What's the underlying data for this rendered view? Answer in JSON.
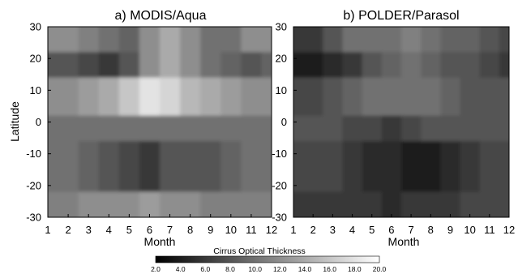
{
  "chart_data": [
    {
      "type": "heatmap",
      "title": "a)  MODIS/Aqua",
      "xlabel": "Month",
      "ylabel": "Latitude",
      "x_ticks": [
        "1",
        "2",
        "3",
        "4",
        "5",
        "6",
        "7",
        "8",
        "9",
        "10",
        "11",
        "12"
      ],
      "y_ticks": [
        "30",
        "20",
        "10",
        "0",
        "-10",
        "-20",
        "-30"
      ],
      "xlim": [
        1,
        12
      ],
      "ylim": [
        -30,
        30
      ],
      "colorscale": "grayscale",
      "approx_cirrus_optical_thickness_by_latitude_band": [
        {
          "lat_range": [
            22,
            30
          ],
          "values": [
            12,
            12,
            11,
            10,
            9,
            12,
            14,
            12,
            10,
            10,
            12,
            12
          ]
        },
        {
          "lat_range": [
            14,
            22
          ],
          "values": [
            8,
            8,
            7,
            6,
            8,
            12,
            14,
            12,
            10,
            9,
            8,
            9
          ]
        },
        {
          "lat_range": [
            2,
            14
          ],
          "values": [
            12,
            12,
            13,
            14,
            16,
            18,
            17,
            15,
            14,
            13,
            12,
            12
          ]
        },
        {
          "lat_range": [
            -6,
            2
          ],
          "values": [
            10,
            10,
            10,
            10,
            10,
            10,
            10,
            10,
            10,
            10,
            10,
            10
          ]
        },
        {
          "lat_range": [
            -22,
            -6
          ],
          "values": [
            10,
            10,
            9,
            8,
            7,
            6,
            8,
            8,
            8,
            9,
            10,
            10
          ]
        },
        {
          "lat_range": [
            -30,
            -22
          ],
          "values": [
            11,
            11,
            12,
            12,
            12,
            13,
            12,
            12,
            11,
            11,
            11,
            11
          ]
        }
      ]
    },
    {
      "type": "heatmap",
      "title": "b)  POLDER/Parasol",
      "xlabel": "Month",
      "x_ticks": [
        "1",
        "2",
        "3",
        "4",
        "5",
        "6",
        "7",
        "8",
        "9",
        "10",
        "11",
        "12"
      ],
      "y_ticks": [
        "30",
        "20",
        "10",
        "0",
        "-10",
        "-20",
        "-30"
      ],
      "xlim": [
        1,
        12
      ],
      "ylim": [
        -30,
        30
      ],
      "colorscale": "grayscale",
      "approx_cirrus_optical_thickness_by_latitude_band": [
        {
          "lat_range": [
            22,
            30
          ],
          "values": [
            6,
            6,
            8,
            10,
            10,
            10,
            11,
            10,
            9,
            9,
            8,
            7
          ]
        },
        {
          "lat_range": [
            14,
            22
          ],
          "values": [
            4,
            4,
            5,
            6,
            8,
            9,
            10,
            9,
            8,
            8,
            7,
            6
          ]
        },
        {
          "lat_range": [
            2,
            14
          ],
          "values": [
            7,
            7,
            8,
            9,
            10,
            10,
            10,
            10,
            9,
            8,
            8,
            8
          ]
        },
        {
          "lat_range": [
            -6,
            2
          ],
          "values": [
            8,
            8,
            8,
            7,
            7,
            6,
            7,
            8,
            8,
            8,
            8,
            8
          ]
        },
        {
          "lat_range": [
            -22,
            -6
          ],
          "values": [
            7,
            7,
            7,
            6,
            5,
            5,
            4,
            4,
            5,
            6,
            7,
            7
          ]
        },
        {
          "lat_range": [
            -30,
            -22
          ],
          "values": [
            6,
            6,
            6,
            6,
            6,
            5,
            6,
            6,
            6,
            7,
            7,
            7
          ]
        }
      ]
    }
  ],
  "colorbar": {
    "title": "Cirrus Optical Thickness",
    "min": 2.0,
    "max": 20.0,
    "tick_labels": [
      "2.0",
      "4.0",
      "6.0",
      "8.0",
      "10.0",
      "12.0",
      "14.0",
      "16.0",
      "18.0",
      "20.0"
    ]
  }
}
